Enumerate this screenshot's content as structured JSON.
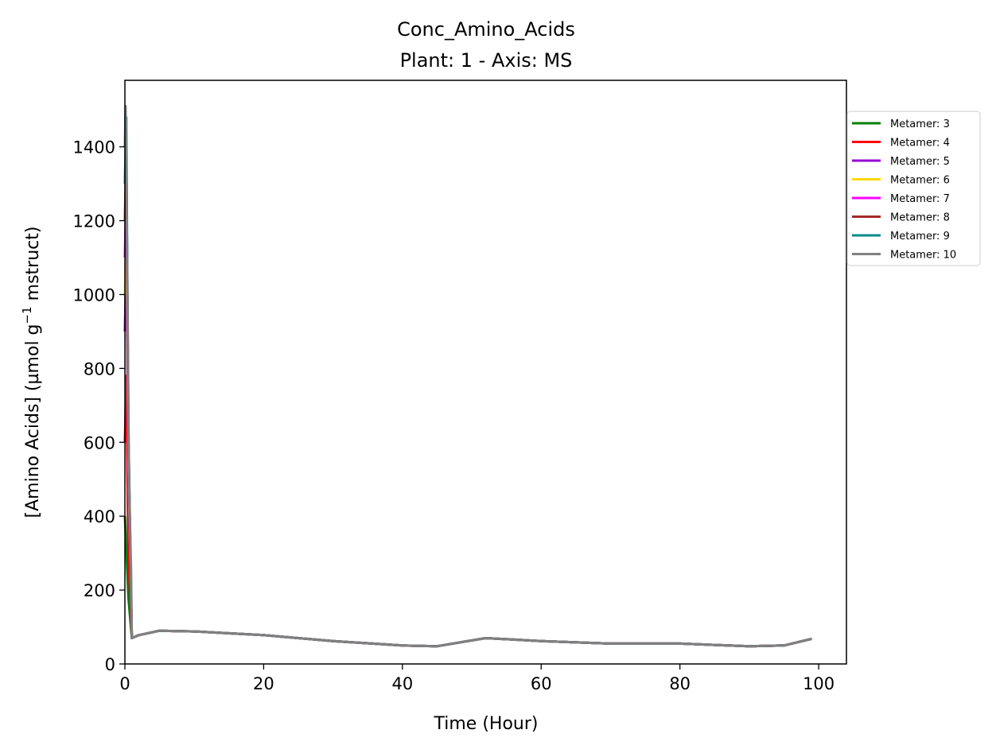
{
  "chart_data": {
    "type": "line",
    "title": "Conc_Amino_Acids",
    "subtitle": "Plant: 1 - Axis: MS",
    "xlabel": "Time (Hour)",
    "ylabel_main": "[Amino Acids] (µmol g",
    "ylabel_sup": "−1",
    "ylabel_tail": " mstruct)",
    "xlim": [
      0,
      104
    ],
    "ylim": [
      0,
      1580
    ],
    "xticks": [
      0,
      20,
      40,
      60,
      80,
      100
    ],
    "yticks": [
      0,
      200,
      400,
      600,
      800,
      1000,
      1200,
      1400
    ],
    "grid": false,
    "legend_position": "right-outside-top",
    "series": [
      {
        "name": "Metamer: 3",
        "color": "#008000",
        "x": [
          0,
          0.5,
          1,
          2,
          5,
          10,
          20,
          30,
          40,
          45,
          52,
          60,
          70,
          80,
          90,
          95,
          99
        ],
        "y": [
          400,
          180,
          70,
          78,
          90,
          88,
          78,
          62,
          50,
          48,
          70,
          62,
          55,
          55,
          48,
          50,
          68
        ]
      },
      {
        "name": "Metamer: 4",
        "color": "#ff0000",
        "x": [
          0,
          0.2,
          0.5,
          1,
          2,
          5,
          10,
          20,
          30,
          40,
          45,
          52,
          60,
          70,
          80,
          90,
          95,
          99
        ],
        "y": [
          600,
          780,
          300,
          70,
          78,
          90,
          88,
          78,
          62,
          50,
          48,
          70,
          62,
          55,
          55,
          48,
          50,
          68
        ]
      },
      {
        "name": "Metamer: 5",
        "color": "#9400d3",
        "x": [
          0,
          0.2,
          0.5,
          1,
          2,
          5,
          10,
          20,
          30,
          40,
          45,
          52,
          60,
          70,
          80,
          90,
          95,
          99
        ],
        "y": [
          900,
          1100,
          500,
          70,
          78,
          90,
          88,
          78,
          62,
          50,
          48,
          70,
          62,
          55,
          55,
          48,
          50,
          68
        ]
      },
      {
        "name": "Metamer: 6",
        "color": "#ffd700",
        "x": [
          0,
          0.2,
          0.5,
          1,
          2,
          5,
          10,
          20,
          30,
          40,
          45,
          52,
          60,
          70,
          80,
          90,
          95,
          99
        ],
        "y": [
          1000,
          1200,
          550,
          70,
          78,
          90,
          88,
          78,
          62,
          50,
          48,
          70,
          62,
          55,
          55,
          48,
          50,
          68
        ]
      },
      {
        "name": "Metamer: 7",
        "color": "#ff00ff",
        "x": [
          0,
          0.2,
          0.5,
          1,
          2,
          5,
          10,
          20,
          30,
          40,
          45,
          52,
          60,
          70,
          80,
          90,
          95,
          99
        ],
        "y": [
          1100,
          1300,
          600,
          70,
          78,
          90,
          88,
          78,
          62,
          50,
          48,
          70,
          62,
          55,
          55,
          48,
          50,
          68
        ]
      },
      {
        "name": "Metamer: 8",
        "color": "#a52a2a",
        "x": [
          0,
          0.2,
          0.5,
          1,
          2,
          5,
          10,
          20,
          30,
          40,
          45,
          52,
          60,
          70,
          80,
          90,
          95,
          99
        ],
        "y": [
          1200,
          1400,
          620,
          70,
          78,
          90,
          88,
          78,
          62,
          50,
          48,
          70,
          62,
          55,
          55,
          48,
          50,
          68
        ]
      },
      {
        "name": "Metamer: 9",
        "color": "#008b8b",
        "x": [
          0,
          0.2,
          0.5,
          1,
          2,
          5,
          10,
          20,
          30,
          40,
          45,
          52,
          60,
          70,
          80,
          90,
          95,
          99
        ],
        "y": [
          1300,
          1480,
          640,
          70,
          78,
          90,
          88,
          78,
          62,
          50,
          48,
          70,
          62,
          55,
          55,
          48,
          50,
          68
        ]
      },
      {
        "name": "Metamer: 10",
        "color": "#808080",
        "x": [
          0,
          0.1,
          0.3,
          0.6,
          0.9,
          1,
          2,
          5,
          10,
          20,
          30,
          40,
          45,
          52,
          60,
          70,
          80,
          90,
          95,
          99
        ],
        "y": [
          1400,
          1510,
          1150,
          500,
          250,
          70,
          78,
          90,
          88,
          78,
          62,
          50,
          48,
          70,
          62,
          55,
          55,
          48,
          50,
          68
        ]
      }
    ]
  }
}
